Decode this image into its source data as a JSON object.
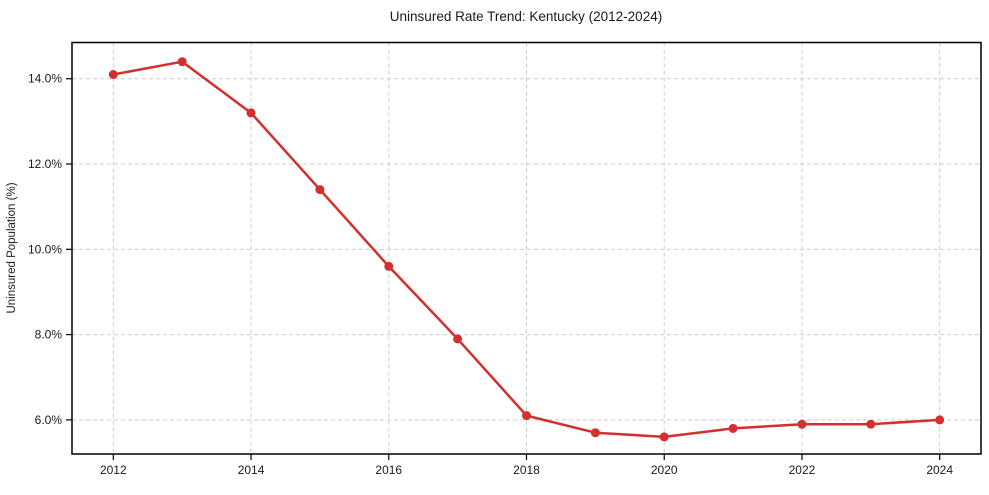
{
  "chart": {
    "title": "Uninsured Rate Trend: Kentucky (2012-2024)",
    "ylabel": "Uninsured Population (%)"
  },
  "chart_data": {
    "type": "line",
    "title": "Uninsured Rate Trend: Kentucky (2012-2024)",
    "xlabel": "",
    "ylabel": "Uninsured Population (%)",
    "x": [
      2012,
      2013,
      2014,
      2015,
      2016,
      2017,
      2018,
      2019,
      2020,
      2021,
      2022,
      2023,
      2024
    ],
    "series": [
      {
        "name": "Uninsured rate",
        "values": [
          14.1,
          14.4,
          13.2,
          11.4,
          9.6,
          7.9,
          6.1,
          5.7,
          5.6,
          5.8,
          5.9,
          5.9,
          6.0
        ]
      }
    ],
    "x_ticks": [
      2012,
      2014,
      2016,
      2018,
      2020,
      2022,
      2024
    ],
    "x_tick_labels": [
      "2012",
      "2014",
      "2016",
      "2018",
      "2020",
      "2022",
      "2024"
    ],
    "y_ticks": [
      6,
      8,
      10,
      12,
      14
    ],
    "y_tick_labels": [
      "6.0%",
      "8.0%",
      "10.0%",
      "12.0%",
      "14.0%"
    ],
    "xlim": [
      2011.4,
      2024.6
    ],
    "ylim": [
      5.2,
      14.85
    ],
    "grid": true,
    "grid_style": "dashed",
    "legend": "none",
    "marker": "circle",
    "colors": {
      "line": "#d32f2f",
      "marker": "#d32f2f",
      "grid": "#cccccc",
      "spine": "#000000",
      "text": "#1a1a1a",
      "background": "#ffffff"
    }
  }
}
